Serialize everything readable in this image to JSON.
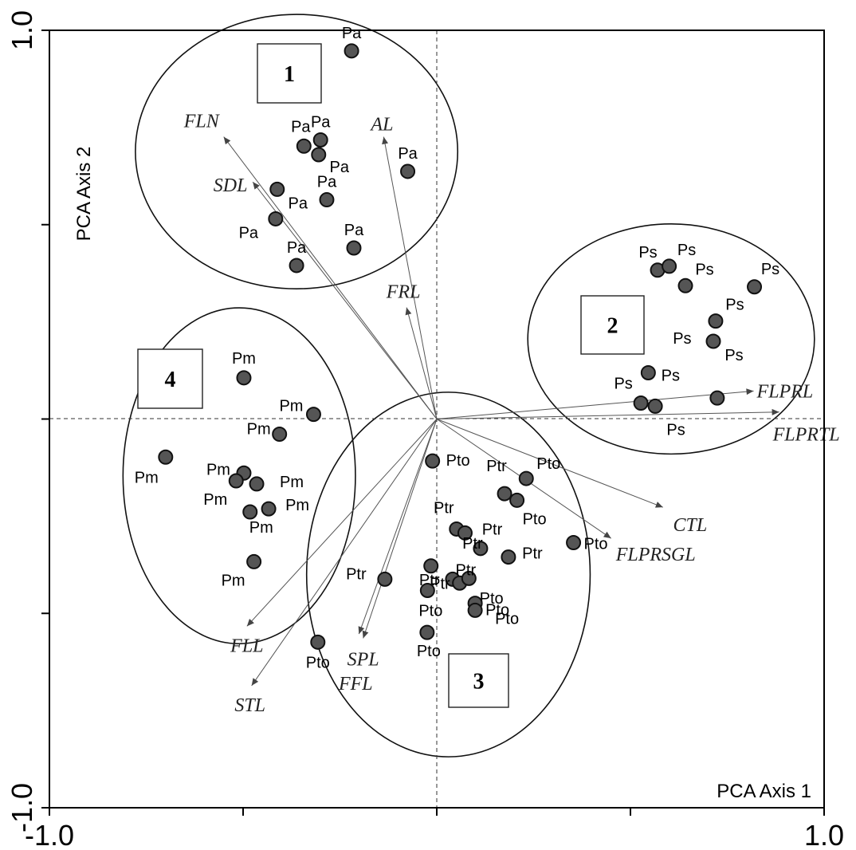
{
  "chart_data": {
    "type": "scatter",
    "title": "",
    "xlabel": "PCA Axis 1",
    "ylabel": "PCA Axis 2",
    "xlim": [
      -1.0,
      1.0
    ],
    "ylim": [
      -1.0,
      1.0
    ],
    "xtick_labels": [
      "-1.0",
      "1.0"
    ],
    "ytick_labels": [
      "-1.0",
      "1.0"
    ],
    "grid": false,
    "zero_lines": true,
    "points": [
      {
        "label": "Pa",
        "x": -0.22,
        "y": 0.947
      },
      {
        "label": "Pa",
        "x": -0.343,
        "y": 0.702
      },
      {
        "label": "Pa",
        "x": -0.3,
        "y": 0.718
      },
      {
        "label": "Pa",
        "x": -0.305,
        "y": 0.68
      },
      {
        "label": "Pa",
        "x": -0.075,
        "y": 0.637
      },
      {
        "label": "Pa",
        "x": -0.412,
        "y": 0.591
      },
      {
        "label": "Pa",
        "x": -0.284,
        "y": 0.564
      },
      {
        "label": "Pa",
        "x": -0.416,
        "y": 0.515
      },
      {
        "label": "Pa",
        "x": -0.214,
        "y": 0.44
      },
      {
        "label": "Pa",
        "x": -0.362,
        "y": 0.395
      },
      {
        "label": "Ps",
        "x": 0.57,
        "y": 0.383
      },
      {
        "label": "Ps",
        "x": 0.6,
        "y": 0.393
      },
      {
        "label": "Ps",
        "x": 0.642,
        "y": 0.343
      },
      {
        "label": "Ps",
        "x": 0.82,
        "y": 0.34
      },
      {
        "label": "Ps",
        "x": 0.72,
        "y": 0.252
      },
      {
        "label": "Ps",
        "x": 0.714,
        "y": 0.2
      },
      {
        "label": "Ps",
        "x": 0.546,
        "y": 0.119
      },
      {
        "label": "Ps",
        "x": 0.724,
        "y": 0.054
      },
      {
        "label": "Ps",
        "x": 0.564,
        "y": 0.033
      },
      {
        "label": "Ps",
        "x": 0.527,
        "y": 0.041
      },
      {
        "label": "Pm",
        "x": -0.498,
        "y": 0.106
      },
      {
        "label": "Pm",
        "x": -0.318,
        "y": 0.012
      },
      {
        "label": "Pm",
        "x": -0.406,
        "y": -0.039
      },
      {
        "label": "Pm",
        "x": -0.7,
        "y": -0.098
      },
      {
        "label": "Pm",
        "x": -0.498,
        "y": -0.139
      },
      {
        "label": "Pm",
        "x": -0.518,
        "y": -0.159
      },
      {
        "label": "Pm",
        "x": -0.465,
        "y": -0.167
      },
      {
        "label": "Pm",
        "x": -0.482,
        "y": -0.239
      },
      {
        "label": "Pm",
        "x": -0.434,
        "y": -0.231
      },
      {
        "label": "Pm",
        "x": -0.472,
        "y": -0.367
      },
      {
        "label": "Pto",
        "x": -0.011,
        "y": -0.108
      },
      {
        "label": "Pto",
        "x": 0.231,
        "y": -0.153
      },
      {
        "label": "Ptr",
        "x": 0.175,
        "y": -0.192
      },
      {
        "label": "Pto",
        "x": 0.207,
        "y": -0.209
      },
      {
        "label": "Ptr",
        "x": 0.051,
        "y": -0.283
      },
      {
        "label": "Ptr",
        "x": 0.073,
        "y": -0.293
      },
      {
        "label": "Pto",
        "x": 0.353,
        "y": -0.318
      },
      {
        "label": "Ptr",
        "x": 0.113,
        "y": -0.333
      },
      {
        "label": "Ptr",
        "x": 0.185,
        "y": -0.355
      },
      {
        "label": "Ptr",
        "x": -0.015,
        "y": -0.378
      },
      {
        "label": "Ptr",
        "x": -0.134,
        "y": -0.412
      },
      {
        "label": "Ptr",
        "x": 0.041,
        "y": -0.412
      },
      {
        "label": "Pto",
        "x": 0.059,
        "y": -0.422
      },
      {
        "label": "Ptr",
        "x": 0.083,
        "y": -0.41
      },
      {
        "label": "Pto",
        "x": -0.024,
        "y": -0.441
      },
      {
        "label": "Pto",
        "x": 0.099,
        "y": -0.474
      },
      {
        "label": "Pto",
        "x": 0.099,
        "y": -0.492
      },
      {
        "label": "Pto",
        "x": -0.025,
        "y": -0.549
      },
      {
        "label": "Pto",
        "x": -0.307,
        "y": -0.574
      }
    ],
    "vectors": [
      {
        "name": "FLN",
        "x": -0.55,
        "y": 0.726
      },
      {
        "name": "SDL",
        "x": -0.475,
        "y": 0.61
      },
      {
        "name": "AL",
        "x": -0.137,
        "y": 0.726
      },
      {
        "name": "FRL",
        "x": -0.078,
        "y": 0.287
      },
      {
        "name": "FLPRL",
        "x": 0.818,
        "y": 0.072
      },
      {
        "name": "FLPRTL",
        "x": 0.884,
        "y": 0.018
      },
      {
        "name": "CTL",
        "x": 0.584,
        "y": -0.227
      },
      {
        "name": "FLPRSGL",
        "x": 0.45,
        "y": -0.307
      },
      {
        "name": "FLL",
        "x": -0.49,
        "y": -0.533
      },
      {
        "name": "SPL",
        "x": -0.19,
        "y": -0.564
      },
      {
        "name": "FFL",
        "x": -0.201,
        "y": -0.553
      },
      {
        "name": "STL",
        "x": -0.478,
        "y": -0.686
      }
    ],
    "groups": [
      {
        "label": "1",
        "cx": -0.362,
        "cy": 0.688,
        "rx": 0.416,
        "ry": 0.353
      },
      {
        "label": "2",
        "cx": 0.605,
        "cy": 0.206,
        "rx": 0.37,
        "ry": 0.296
      },
      {
        "label": "3",
        "cx": 0.03,
        "cy": -0.4,
        "rx": 0.366,
        "ry": 0.469
      },
      {
        "label": "4",
        "cx": -0.51,
        "cy": -0.146,
        "rx": 0.3,
        "ry": 0.432
      }
    ]
  }
}
